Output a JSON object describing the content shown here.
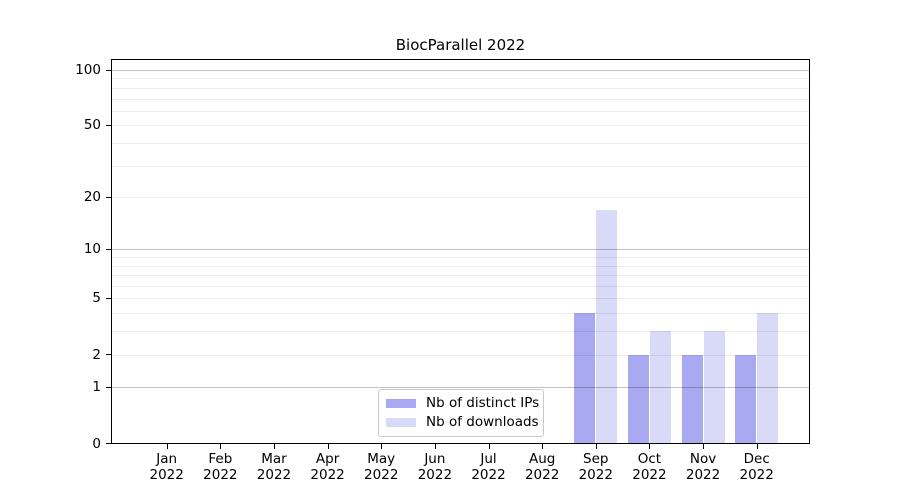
{
  "chart_data": {
    "type": "bar",
    "title": "BiocParallel 2022",
    "year": "2022",
    "categories": [
      "Jan",
      "Feb",
      "Mar",
      "Apr",
      "May",
      "Jun",
      "Jul",
      "Aug",
      "Sep",
      "Oct",
      "Nov",
      "Dec"
    ],
    "series": [
      {
        "name": "Nb of distinct IPs",
        "color": "#a9a9f1",
        "values": [
          0,
          0,
          0,
          0,
          0,
          0,
          0,
          0,
          4,
          2,
          2,
          2
        ]
      },
      {
        "name": "Nb of downloads",
        "color": "#d9d9f8",
        "values": [
          0,
          0,
          0,
          0,
          0,
          0,
          0,
          0,
          17,
          3,
          3,
          4
        ]
      }
    ],
    "y_axis": {
      "scale": "log10(1+y)",
      "tick_labels": [
        0,
        1,
        2,
        5,
        10,
        20,
        50,
        100
      ],
      "major_gridlines": [
        1,
        10,
        100
      ],
      "minor_gridlines": [
        2,
        3,
        4,
        5,
        6,
        7,
        8,
        9,
        20,
        30,
        40,
        50,
        60,
        70,
        80,
        90
      ],
      "ylim": [
        0,
        114
      ]
    },
    "legend": {
      "position": "lower center, inside plot"
    },
    "grid": true
  }
}
